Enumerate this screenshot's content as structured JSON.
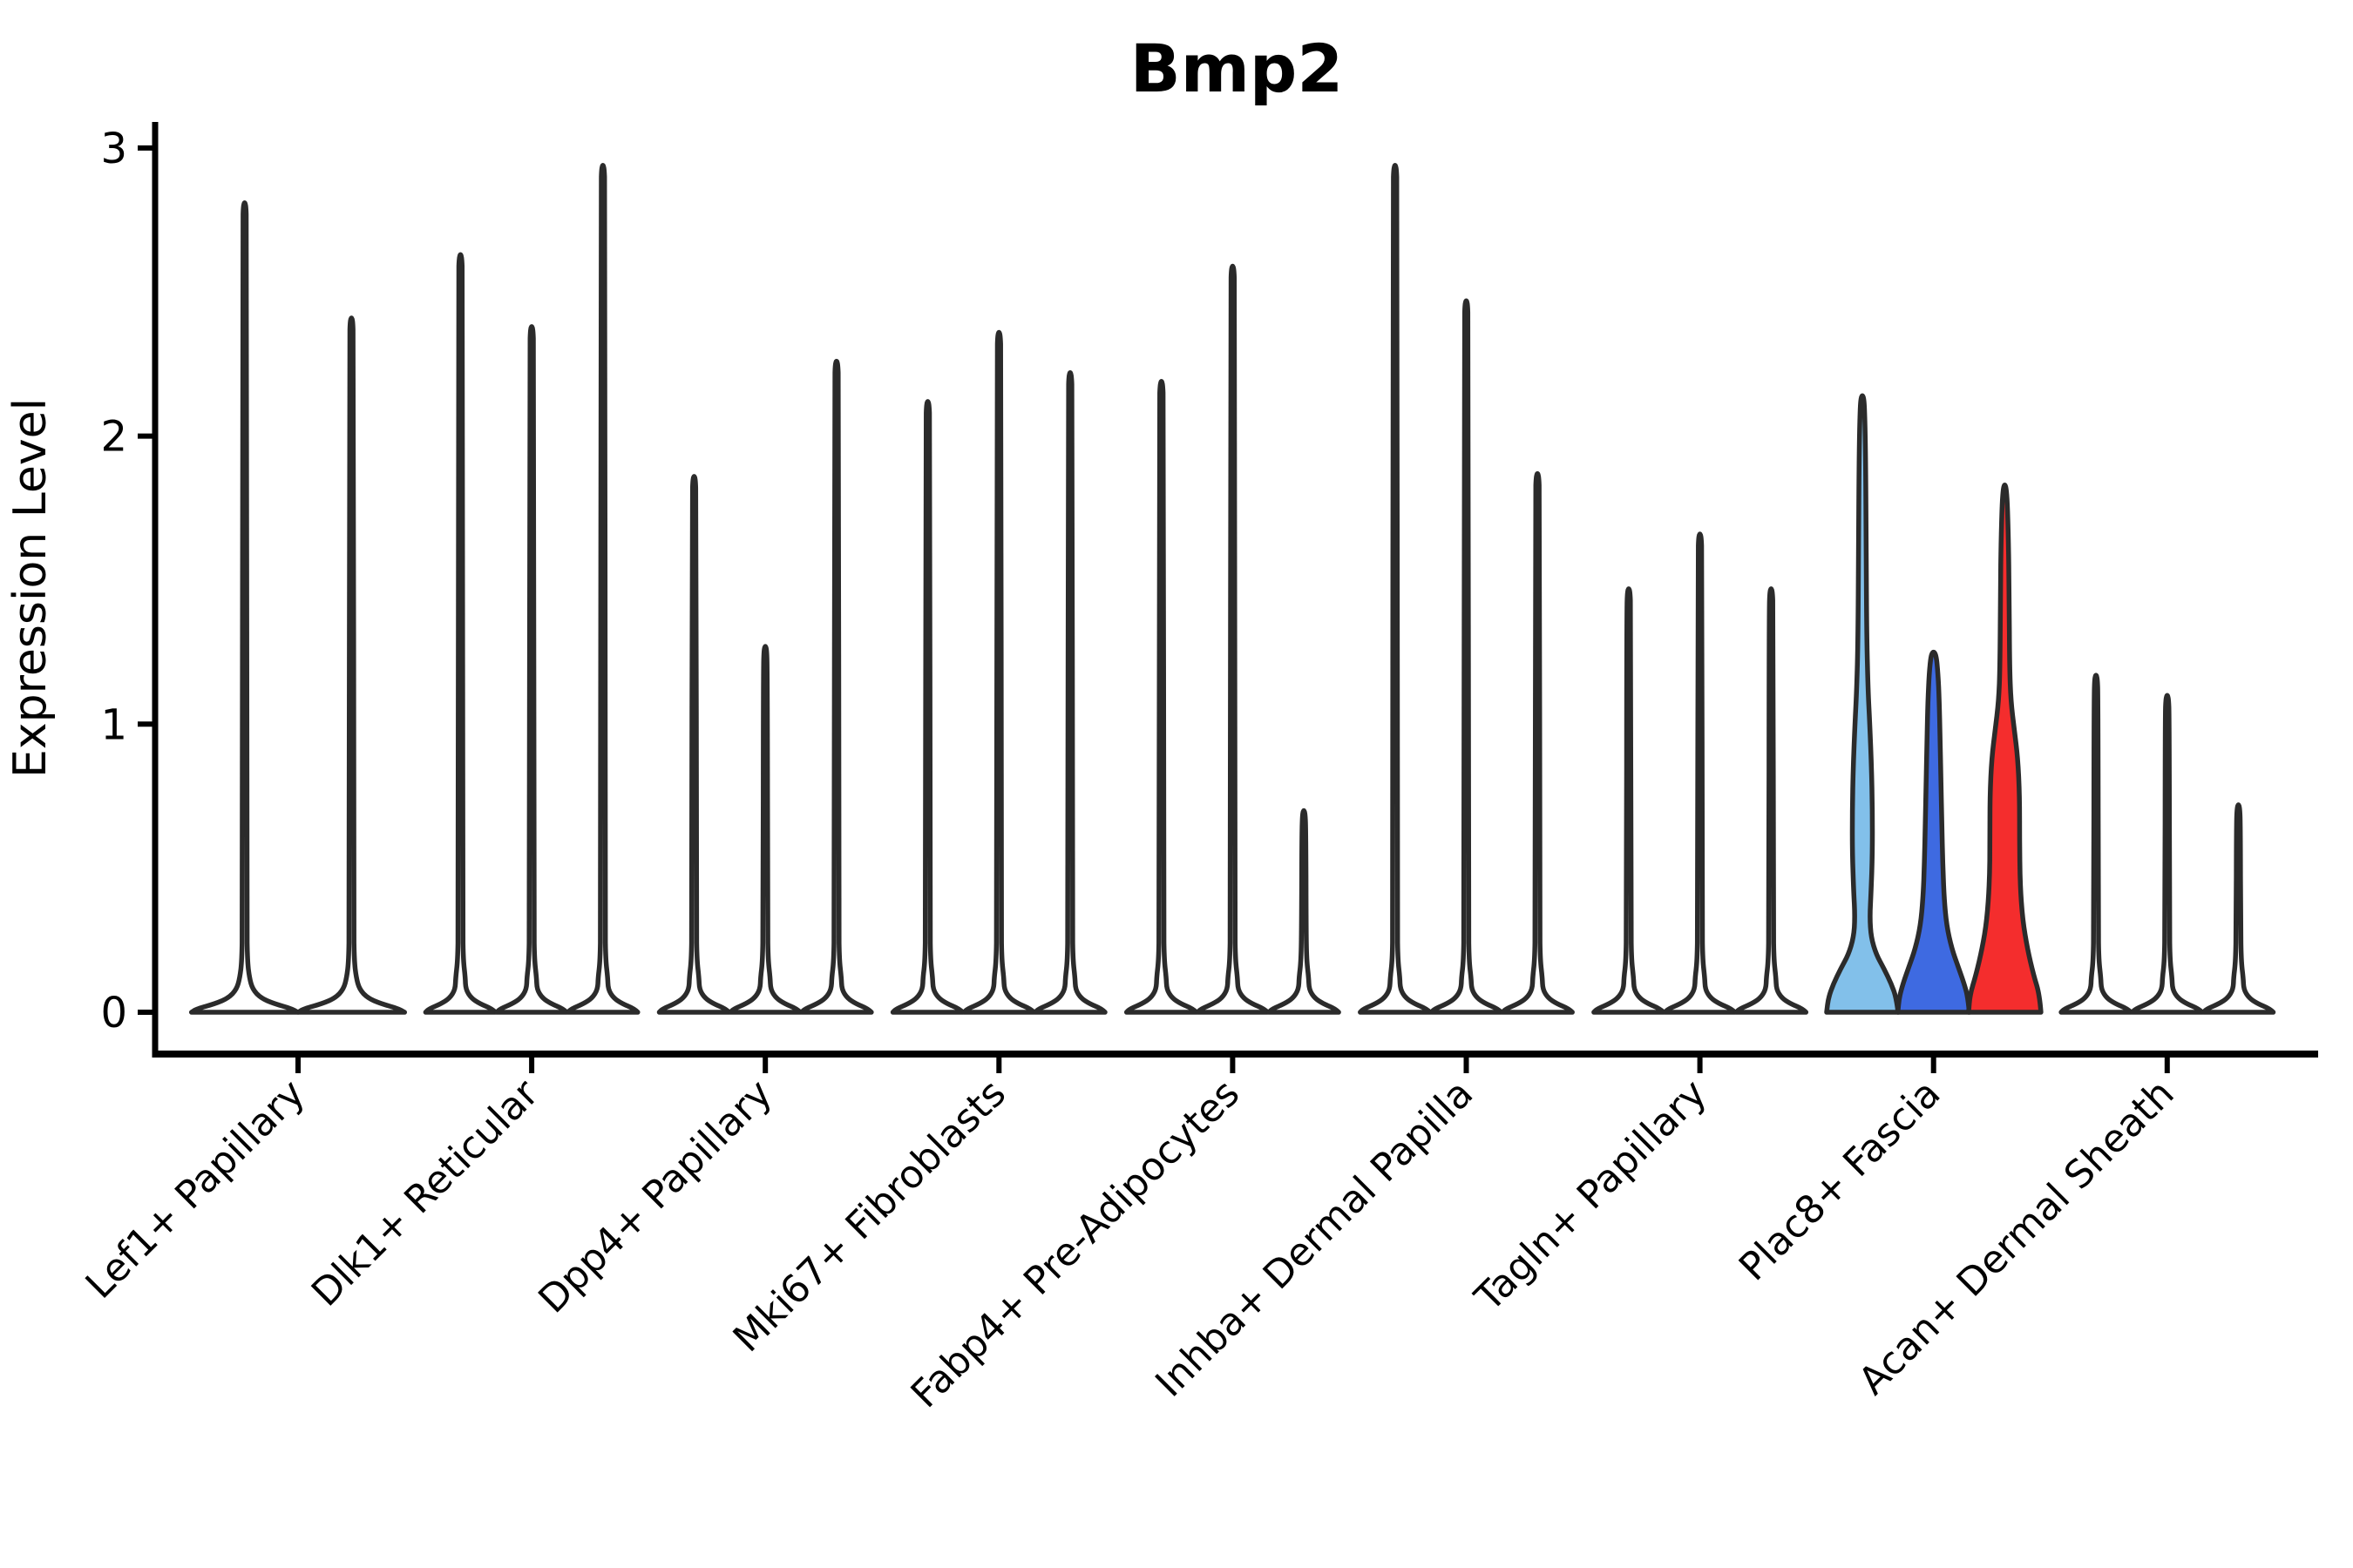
{
  "figure": {
    "title": "Bmp2",
    "ylabel": "Expression Level",
    "background": "#ffffff"
  },
  "style": {
    "axis_color": "#000000",
    "violin_stroke": "#2b2b2b",
    "default_violin_fill": "#ffffff",
    "highlight_light_blue": "#82c0ea",
    "highlight_blue": "#3e6ae1",
    "highlight_red": "#f42d2d"
  },
  "chart_data": {
    "type": "violin",
    "title": "Bmp2",
    "xlabel": "",
    "ylabel": "Expression Level",
    "yticks": [
      0,
      1,
      2,
      3
    ],
    "ylim": [
      0,
      3.1
    ],
    "grid": false,
    "legend": "none",
    "categories": [
      "Lef1+ Papillary",
      "Dlk1+ Reticular",
      "Dpp4+ Papillary",
      "Mki67+ Fibroblasts",
      "Fabp4+ Pre-Adipocytes",
      "Inhba+ Dermal Papilla",
      "Tagln+ Papillary",
      "Plac8+ Fascia",
      "Acan+ Dermal Sheath"
    ],
    "groups": [
      {
        "category": "Lef1+ Papillary",
        "violins": [
          {
            "max": 2.81
          },
          {
            "max": 2.41
          }
        ]
      },
      {
        "category": "Dlk1+ Reticular",
        "violins": [
          {
            "max": 2.63
          },
          {
            "max": 2.38
          },
          {
            "max": 2.94
          }
        ]
      },
      {
        "category": "Dpp4+ Papillary",
        "violins": [
          {
            "max": 1.86
          },
          {
            "max": 1.27
          },
          {
            "max": 2.26
          }
        ]
      },
      {
        "category": "Mki67+ Fibroblasts",
        "violins": [
          {
            "max": 2.12
          },
          {
            "max": 2.36
          },
          {
            "max": 2.22
          }
        ]
      },
      {
        "category": "Fabp4+ Pre-Adipocytes",
        "violins": [
          {
            "max": 2.19
          },
          {
            "max": 2.59
          },
          {
            "max": 0.7
          }
        ]
      },
      {
        "category": "Inhba+ Dermal Papilla",
        "violins": [
          {
            "max": 2.94
          },
          {
            "max": 2.47
          },
          {
            "max": 1.87
          }
        ]
      },
      {
        "category": "Tagln+ Papillary",
        "violins": [
          {
            "max": 1.47
          },
          {
            "max": 1.66
          },
          {
            "max": 1.47
          }
        ]
      },
      {
        "category": "Plac8+ Fascia",
        "violins": [
          {
            "max": 2.14,
            "fill": "#82c0ea",
            "profile": [
              [
                0,
                41
              ],
              [
                0.05,
                39
              ],
              [
                0.1,
                33
              ],
              [
                0.15,
                25
              ],
              [
                0.2,
                16
              ],
              [
                0.26,
                10
              ],
              [
                0.33,
                8.5
              ],
              [
                0.42,
                10
              ],
              [
                0.55,
                11.5
              ],
              [
                0.7,
                11.5
              ],
              [
                0.85,
                10.5
              ],
              [
                1.0,
                8.5
              ],
              [
                1.12,
                6.5
              ],
              [
                1.3,
                5
              ],
              [
                1.6,
                4.4
              ],
              [
                1.9,
                3.8
              ],
              [
                2.05,
                3.0
              ],
              [
                2.14,
                1.8
              ]
            ]
          },
          {
            "max": 1.25,
            "fill": "#3e6ae1",
            "profile": [
              [
                0,
                41
              ],
              [
                0.05,
                39.5
              ],
              [
                0.1,
                35
              ],
              [
                0.16,
                28
              ],
              [
                0.22,
                21
              ],
              [
                0.3,
                15
              ],
              [
                0.4,
                12
              ],
              [
                0.52,
                10.5
              ],
              [
                0.65,
                9.5
              ],
              [
                0.8,
                8.5
              ],
              [
                0.95,
                7.5
              ],
              [
                1.08,
                6.5
              ],
              [
                1.18,
                5
              ],
              [
                1.25,
                2.5
              ]
            ]
          },
          {
            "max": 1.83,
            "fill": "#f42d2d",
            "profile": [
              [
                0,
                41.5
              ],
              [
                0.06,
                40
              ],
              [
                0.13,
                33
              ],
              [
                0.22,
                26
              ],
              [
                0.32,
                20.5
              ],
              [
                0.45,
                17.5
              ],
              [
                0.6,
                17
              ],
              [
                0.75,
                17
              ],
              [
                0.88,
                15
              ],
              [
                0.98,
                11
              ],
              [
                1.08,
                7
              ],
              [
                1.2,
                5.5
              ],
              [
                1.45,
                5
              ],
              [
                1.65,
                4.2
              ],
              [
                1.83,
                2.2
              ]
            ]
          }
        ]
      },
      {
        "category": "Acan+ Dermal Sheath",
        "violins": [
          {
            "max": 1.17
          },
          {
            "max": 1.1
          },
          {
            "max": 0.72
          }
        ]
      }
    ]
  }
}
